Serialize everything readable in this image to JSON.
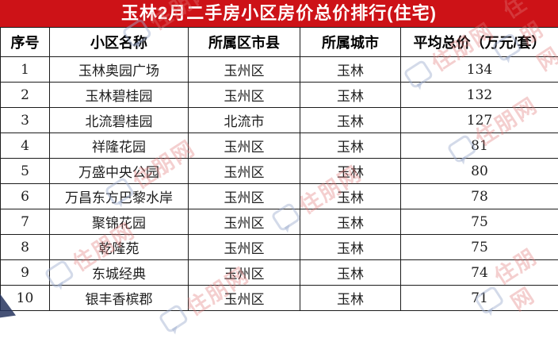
{
  "title": "玉林2月二手房小区房价总价排行(住宅)",
  "watermark_text": "住朋网",
  "colors": {
    "title_bg": "#cd1217",
    "title_text": "#ffffff",
    "border": "#1c1c1c",
    "body_text": "#1e1e1e",
    "watermark_pink": "#e07a7a",
    "watermark_blue": "#9eaece"
  },
  "chart_data": {
    "type": "table",
    "title": "玉林2月二手房小区房价总价排行(住宅)",
    "unit": "万元/套",
    "columns": [
      "序号",
      "小区名称",
      "所属区市县",
      "所属城市",
      "平均总价（万元/套）"
    ],
    "rows": [
      [
        "1",
        "玉林奥园广场",
        "玉州区",
        "玉林",
        "134"
      ],
      [
        "2",
        "玉林碧桂园",
        "玉州区",
        "玉林",
        "132"
      ],
      [
        "3",
        "北流碧桂园",
        "北流市",
        "玉林",
        "127"
      ],
      [
        "4",
        "祥隆花园",
        "玉州区",
        "玉林",
        "81"
      ],
      [
        "5",
        "万盛中央公园",
        "玉州区",
        "玉林",
        "80"
      ],
      [
        "6",
        "万昌东方巴黎水岸",
        "玉州区",
        "玉林",
        "78"
      ],
      [
        "7",
        "聚锦花园",
        "玉州区",
        "玉林",
        "75"
      ],
      [
        "8",
        "乾隆苑",
        "玉州区",
        "玉林",
        "75"
      ],
      [
        "9",
        "东城经典",
        "玉州区",
        "玉林",
        "74"
      ],
      [
        "10",
        "银丰香槟郡",
        "玉州区",
        "玉林",
        "71"
      ]
    ]
  }
}
